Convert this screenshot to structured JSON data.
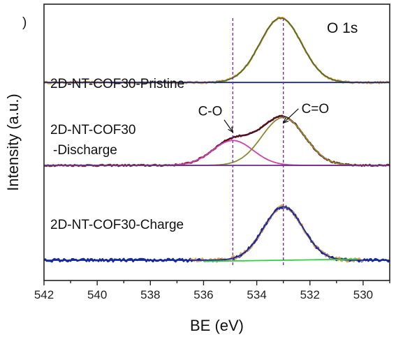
{
  "panel_label": ")",
  "chart_data": {
    "type": "line",
    "title": "O 1s",
    "xlabel": "BE (eV)",
    "ylabel": "Intensity (a.u.)",
    "xlim": [
      542,
      529
    ],
    "x_reversed": true,
    "x_ticks": [
      542,
      540,
      538,
      536,
      534,
      532,
      530
    ],
    "ylim": [
      0,
      3.0
    ],
    "grid": false,
    "legend": "none",
    "reference_lines": [
      534.9,
      533.0
    ],
    "reference_line_color": "#7b2fa8",
    "panels": [
      {
        "label": "2D-NT-COF30-Pristine",
        "baseline": 2.15,
        "curves": [
          {
            "role": "data",
            "color": "#e3a13c",
            "noise": 0.01,
            "peaks": [
              {
                "center": 533.1,
                "height": 0.7,
                "width": 1.85
              }
            ],
            "slope": 0.0
          },
          {
            "role": "fit",
            "color": "#4f6b2a",
            "peaks": [
              {
                "center": 533.1,
                "height": 0.7,
                "width": 1.85
              }
            ],
            "slope": 0.0
          },
          {
            "role": "background",
            "color": "#1f2a8c",
            "peaks": [],
            "slope": 0.0
          }
        ]
      },
      {
        "label_lines": [
          "2D-NT-COF30",
          "-Discharge"
        ],
        "baseline": 1.25,
        "annotations": [
          {
            "text": "C-O",
            "x": 535.75,
            "y": 1.79,
            "arrow_to": [
              534.9,
              1.61
            ]
          },
          {
            "text": "C=O",
            "x": 531.8,
            "y": 1.82,
            "arrow_to": [
              533.0,
              1.71
            ]
          }
        ],
        "curves": [
          {
            "role": "data",
            "color": "#7a1a2a",
            "noise": 0.008,
            "peaks": [
              {
                "center": 534.9,
                "height": 0.27,
                "width": 1.8
              },
              {
                "center": 533.0,
                "height": 0.52,
                "width": 1.9
              }
            ],
            "slope": 0.0
          },
          {
            "role": "fit",
            "color": "#4a1020",
            "peaks": [
              {
                "center": 534.9,
                "height": 0.27,
                "width": 1.8
              },
              {
                "center": 533.0,
                "height": 0.52,
                "width": 1.9
              }
            ],
            "slope": 0.0
          },
          {
            "role": "component C-O",
            "color": "#d040b0",
            "peaks": [
              {
                "center": 534.9,
                "height": 0.27,
                "width": 1.8
              }
            ],
            "slope": 0.0
          },
          {
            "role": "component C=O",
            "color": "#8a8a30",
            "peaks": [
              {
                "center": 533.0,
                "height": 0.52,
                "width": 1.9
              }
            ],
            "slope": 0.0
          },
          {
            "role": "background",
            "color": "#6a2a8a",
            "peaks": [],
            "slope": 0.0
          }
        ]
      },
      {
        "label": "2D-NT-COF30-Charge",
        "baseline": 0.22,
        "curves": [
          {
            "role": "data",
            "color": "#1628a0",
            "noise": 0.016,
            "peaks": [
              {
                "center": 533.0,
                "height": 0.58,
                "width": 1.75
              }
            ],
            "slope": 0.0
          },
          {
            "role": "data overlay",
            "color": "#e0a050",
            "noise": 0.02,
            "range": [
              536.5,
              530.0
            ],
            "peaks": [
              {
                "center": 533.0,
                "height": 0.58,
                "width": 1.75
              }
            ],
            "slope": 0.0
          },
          {
            "role": "fit",
            "color": "#1628a0",
            "peaks": [
              {
                "center": 533.0,
                "height": 0.58,
                "width": 1.75
              }
            ],
            "slope": 0.0
          },
          {
            "role": "background",
            "color": "#30d040",
            "range": [
              536.0,
              530.2
            ],
            "peaks": [],
            "slope": -0.004
          }
        ]
      }
    ]
  }
}
